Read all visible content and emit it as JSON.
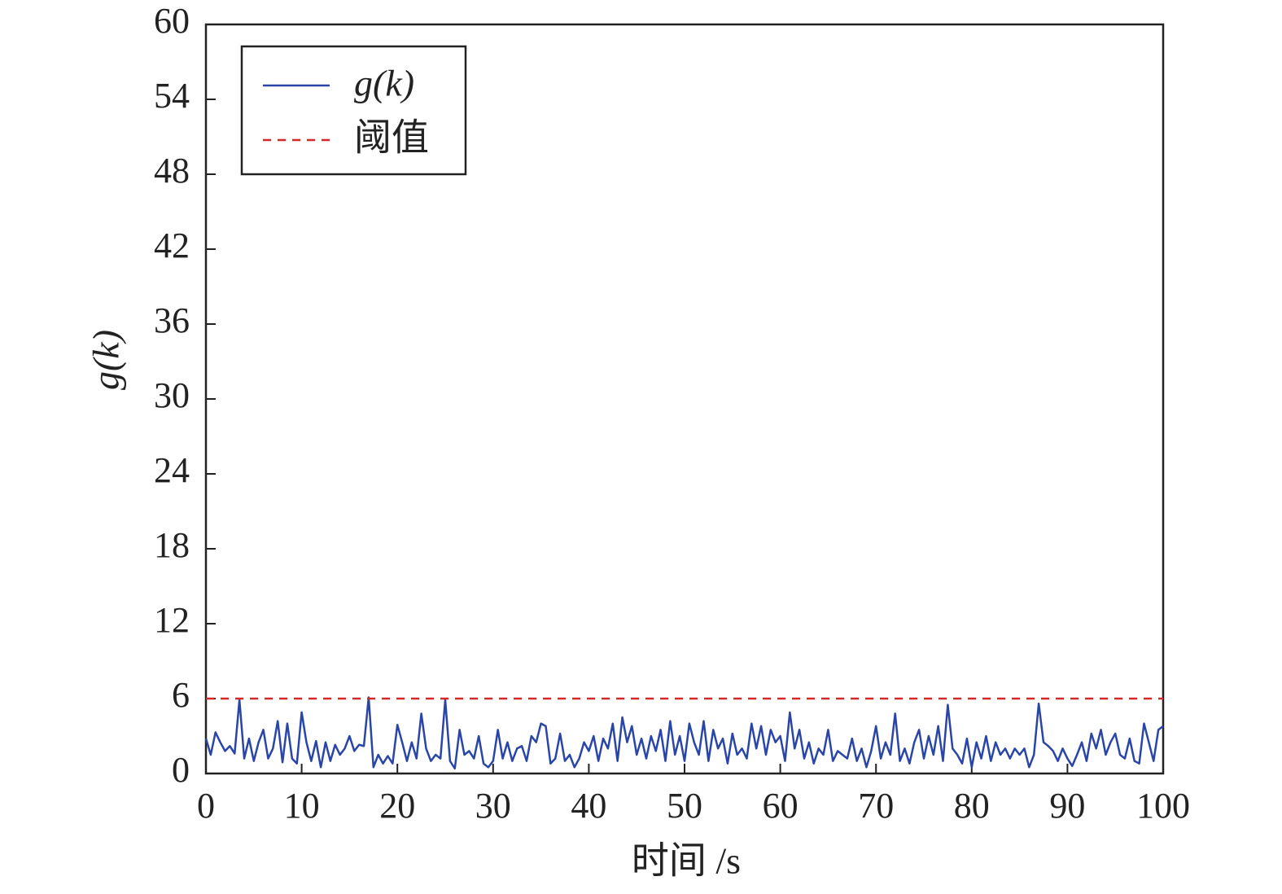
{
  "chart_data": {
    "type": "line",
    "xlabel": "时间 /s",
    "ylabel": "g(k)",
    "xlim": [
      0,
      100
    ],
    "xticks": [
      0,
      10,
      20,
      30,
      40,
      50,
      60,
      70,
      80,
      90,
      100
    ],
    "ylim": [
      0,
      60
    ],
    "yticks": [
      0,
      6,
      12,
      18,
      24,
      30,
      36,
      42,
      48,
      54,
      60
    ],
    "legend": "upper left",
    "series": [
      {
        "name": "g(k)",
        "color": "#2a45a8",
        "dash": false,
        "x": [
          0,
          0.5,
          1,
          1.5,
          2,
          2.5,
          3,
          3.5,
          4,
          4.5,
          5,
          5.5,
          6,
          6.5,
          7,
          7.5,
          8,
          8.5,
          9,
          9.5,
          10,
          10.5,
          11,
          11.5,
          12,
          12.5,
          13,
          13.5,
          14,
          14.5,
          15,
          15.5,
          16,
          16.5,
          17,
          17.5,
          18,
          18.5,
          19,
          19.5,
          20,
          20.5,
          21,
          21.5,
          22,
          22.5,
          23,
          23.5,
          24,
          24.5,
          25,
          25.5,
          26,
          26.5,
          27,
          27.5,
          28,
          28.5,
          29,
          29.5,
          30,
          30.5,
          31,
          31.5,
          32,
          32.5,
          33,
          33.5,
          34,
          34.5,
          35,
          35.5,
          36,
          36.5,
          37,
          37.5,
          38,
          38.5,
          39,
          39.5,
          40,
          40.5,
          41,
          41.5,
          42,
          42.5,
          43,
          43.5,
          44,
          44.5,
          45,
          45.5,
          46,
          46.5,
          47,
          47.5,
          48,
          48.5,
          49,
          49.5,
          50,
          50.5,
          51,
          51.5,
          52,
          52.5,
          53,
          53.5,
          54,
          54.5,
          55,
          55.5,
          56,
          56.5,
          57,
          57.5,
          58,
          58.5,
          59,
          59.5,
          60,
          60.5,
          61,
          61.5,
          62,
          62.5,
          63,
          63.5,
          64,
          64.5,
          65,
          65.5,
          66,
          66.5,
          67,
          67.5,
          68,
          68.5,
          69,
          69.5,
          70,
          70.5,
          71,
          71.5,
          72,
          72.5,
          73,
          73.5,
          74,
          74.5,
          75,
          75.5,
          76,
          76.5,
          77,
          77.5,
          78,
          78.5,
          79,
          79.5,
          80,
          80.5,
          81,
          81.5,
          82,
          82.5,
          83,
          83.5,
          84,
          84.5,
          85,
          85.5,
          86,
          86.5,
          87,
          87.5,
          88,
          88.5,
          89,
          89.5,
          90,
          90.5,
          91,
          91.5,
          92,
          92.5,
          93,
          93.5,
          94,
          94.5,
          95,
          95.5,
          96,
          96.5,
          97,
          97.5,
          98,
          98.5,
          99,
          99.5,
          100
        ],
        "values": [
          2.8,
          1.5,
          3.3,
          2.5,
          1.8,
          2.2,
          1.6,
          5.9,
          1.2,
          2.8,
          1.0,
          2.5,
          3.5,
          1.2,
          2.0,
          4.2,
          0.9,
          4.0,
          1.2,
          0.8,
          4.9,
          2.5,
          1.0,
          2.6,
          0.5,
          2.5,
          1.0,
          2.3,
          1.5,
          2.0,
          3.0,
          1.8,
          2.3,
          2.2,
          6.1,
          0.5,
          1.5,
          0.8,
          1.4,
          0.8,
          3.9,
          2.5,
          1.0,
          2.5,
          1.2,
          4.8,
          2.0,
          1.0,
          1.5,
          1.2,
          5.9,
          1.0,
          0.4,
          3.5,
          1.5,
          1.8,
          1.2,
          3.0,
          0.8,
          0.5,
          1.0,
          3.5,
          1.2,
          2.5,
          1.0,
          2.0,
          2.2,
          1.0,
          3.0,
          2.5,
          4.0,
          3.8,
          0.8,
          1.2,
          3.2,
          1.0,
          1.5,
          0.5,
          1.2,
          2.5,
          1.8,
          3.0,
          1.0,
          2.8,
          2.0,
          4.0,
          1.0,
          4.5,
          2.5,
          3.8,
          1.5,
          2.8,
          1.2,
          3.0,
          1.8,
          3.5,
          1.0,
          4.2,
          1.5,
          3.0,
          1.0,
          4.0,
          2.5,
          1.5,
          4.2,
          1.0,
          3.5,
          2.0,
          2.8,
          0.8,
          3.2,
          1.5,
          2.0,
          1.2,
          4.0,
          2.0,
          3.8,
          1.5,
          3.5,
          2.5,
          3.0,
          1.0,
          4.9,
          2.0,
          3.5,
          1.2,
          2.5,
          0.8,
          2.0,
          1.5,
          3.5,
          1.0,
          1.8,
          1.5,
          1.2,
          2.8,
          1.0,
          2.0,
          0.5,
          1.8,
          3.8,
          1.2,
          2.5,
          1.5,
          4.8,
          1.0,
          2.0,
          0.8,
          2.5,
          3.5,
          1.2,
          3.0,
          1.5,
          3.8,
          1.0,
          5.5,
          2.0,
          1.5,
          0.8,
          2.8,
          0.5,
          2.5,
          1.2,
          3.0,
          1.0,
          2.5,
          1.5,
          2.0,
          1.2,
          2.0,
          1.5,
          2.0,
          0.5,
          1.5,
          5.6,
          2.5,
          2.2,
          1.8,
          1.0,
          2.0,
          1.2,
          0.6,
          1.5,
          2.5,
          1.0,
          3.2,
          2.0,
          3.5,
          1.5,
          2.5,
          3.2,
          1.5,
          1.2,
          2.8,
          1.0,
          0.8,
          4.0,
          2.5,
          1.0,
          3.5,
          3.8
        ]
      },
      {
        "name": "阈值",
        "color": "#d62728",
        "dash": true,
        "x": [
          0,
          100
        ],
        "values": [
          6,
          6
        ]
      }
    ]
  }
}
